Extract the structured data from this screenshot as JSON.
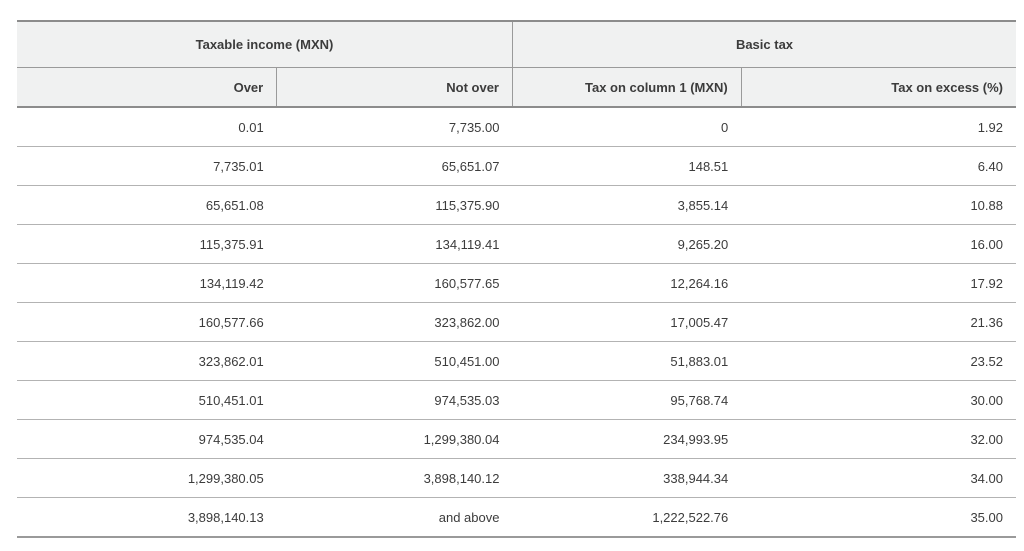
{
  "page": {
    "background": "#ffffff"
  },
  "table": {
    "group_headers": [
      {
        "label": "Taxable income (MXN)"
      },
      {
        "label": "Basic tax"
      }
    ],
    "columns": [
      {
        "label": "Over"
      },
      {
        "label": "Not over"
      },
      {
        "label": "Tax on column 1 (MXN)"
      },
      {
        "label": "Tax on excess (%)"
      }
    ],
    "rows": [
      [
        "0.01",
        "7,735.00",
        "0",
        "1.92"
      ],
      [
        "7,735.01",
        "65,651.07",
        "148.51",
        "6.40"
      ],
      [
        "65,651.08",
        "115,375.90",
        "3,855.14",
        "10.88"
      ],
      [
        "115,375.91",
        "134,119.41",
        "9,265.20",
        "16.00"
      ],
      [
        "134,119.42",
        "160,577.65",
        "12,264.16",
        "17.92"
      ],
      [
        "160,577.66",
        "323,862.00",
        "17,005.47",
        "21.36"
      ],
      [
        "323,862.01",
        "510,451.00",
        "51,883.01",
        "23.52"
      ],
      [
        "510,451.01",
        "974,535.03",
        "95,768.74",
        "30.00"
      ],
      [
        "974,535.04",
        "1,299,380.04",
        "234,993.95",
        "32.00"
      ],
      [
        "1,299,380.05",
        "3,898,140.12",
        "338,944.34",
        "34.00"
      ],
      [
        "3,898,140.13",
        "and above",
        "1,222,522.76",
        "35.00"
      ]
    ],
    "colors": {
      "header_bg": "#f0f1f1",
      "text": "#3c3c3c",
      "border_dark": "#8c8c8c",
      "border_mid": "#9a9a9a",
      "border_light": "#b3b3b3"
    }
  }
}
